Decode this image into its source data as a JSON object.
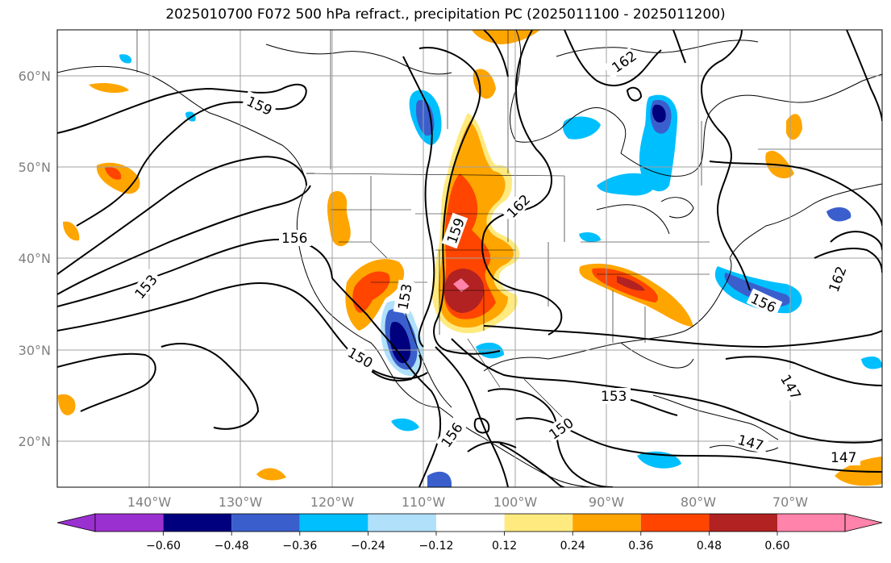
{
  "title": "2025010700 F072 500 hPa refract., precipitation PC (2025011100 - 2025011200)",
  "lat_labels": [
    "60°N",
    "50°N",
    "40°N",
    "30°N",
    "20°N"
  ],
  "lon_labels": [
    "140°W",
    "130°W",
    "120°W",
    "110°W",
    "100°W",
    "90°W",
    "80°W",
    "70°W"
  ],
  "contour_labels": [
    "162",
    "159",
    "162",
    "156",
    "159",
    "153",
    "153",
    "150",
    "156",
    "156",
    "162",
    "153",
    "150",
    "147",
    "147",
    "147"
  ],
  "colorbar": {
    "ticks": [
      "−0.60",
      "−0.48",
      "−0.36",
      "−0.24",
      "−0.12",
      "0.12",
      "0.24",
      "0.36",
      "0.48",
      "0.60"
    ],
    "colors": [
      "#9b30d0",
      "#00007f",
      "#3a5fcd",
      "#00bfff",
      "#b0e0fa",
      "#ffffff",
      "#ffea80",
      "#ffa500",
      "#ff4500",
      "#b22222",
      "#ff83aa"
    ]
  },
  "map": {
    "type": "contour-map",
    "field_contours": "500 hPa refractivity",
    "field_filled": "precipitation PC",
    "extent": {
      "lon": [
        -150,
        -60
      ],
      "lat": [
        15,
        65
      ]
    },
    "gridlines": true,
    "colors": {
      "grid": "#a0a0a0",
      "contour": "#000000",
      "coast": "#000000"
    }
  }
}
